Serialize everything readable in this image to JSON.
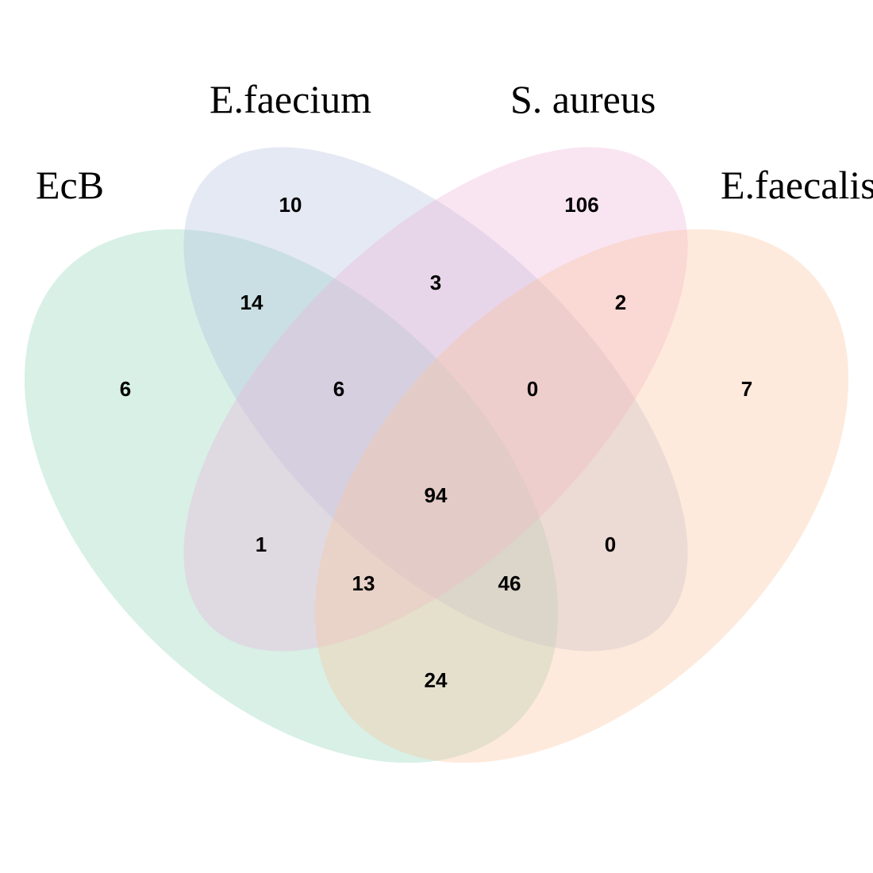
{
  "sets": [
    {
      "id": "ecb",
      "label": "EcB",
      "color": "#8fd3b8"
    },
    {
      "id": "efaecium",
      "label": "E.faecium",
      "color": "#b3bfdc"
    },
    {
      "id": "saureus",
      "label": "S. aureus",
      "color": "#efb2d6"
    },
    {
      "id": "efaecalis",
      "label": "E.faecalis",
      "color": "#fcc39a"
    }
  ],
  "fill_opacity": 0.35,
  "regions": [
    {
      "sets": [
        "E.faecium"
      ],
      "count": "10"
    },
    {
      "sets": [
        "S. aureus"
      ],
      "count": "106"
    },
    {
      "sets": [
        "EcB",
        "E.faecium"
      ],
      "count": "14"
    },
    {
      "sets": [
        "E.faecium",
        "S. aureus"
      ],
      "count": "3"
    },
    {
      "sets": [
        "S. aureus",
        "E.faecalis"
      ],
      "count": "2"
    },
    {
      "sets": [
        "EcB"
      ],
      "count": "6"
    },
    {
      "sets": [
        "EcB",
        "E.faecium",
        "S. aureus"
      ],
      "count": "6"
    },
    {
      "sets": [
        "E.faecium",
        "S. aureus",
        "E.faecalis"
      ],
      "count": "0"
    },
    {
      "sets": [
        "E.faecalis"
      ],
      "count": "7"
    },
    {
      "sets": [
        "EcB",
        "E.faecium",
        "S. aureus",
        "E.faecalis"
      ],
      "count": "94"
    },
    {
      "sets": [
        "EcB",
        "S. aureus"
      ],
      "count": "1"
    },
    {
      "sets": [
        "E.faecium",
        "E.faecalis"
      ],
      "count": "0"
    },
    {
      "sets": [
        "EcB",
        "S. aureus",
        "E.faecalis"
      ],
      "count": "13"
    },
    {
      "sets": [
        "EcB",
        "E.faecium",
        "E.faecalis"
      ],
      "count": "46"
    },
    {
      "sets": [
        "EcB",
        "E.faecalis"
      ],
      "count": "24"
    }
  ]
}
